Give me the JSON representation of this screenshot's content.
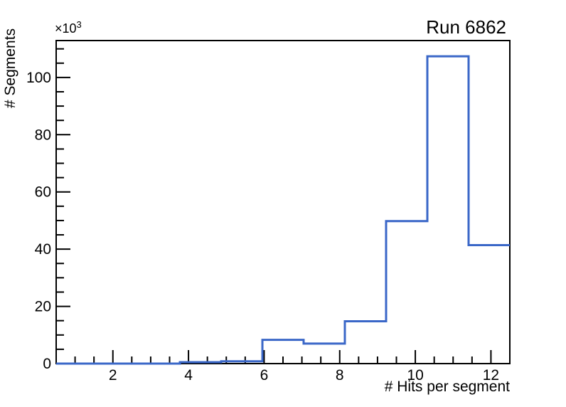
{
  "header": {
    "title": "Run 6862"
  },
  "axes": {
    "x_label": "# Hits per segment",
    "y_label": "# Segments",
    "y_scale_base": "×10",
    "y_scale_exponent": "3"
  },
  "chart_data": {
    "type": "bar",
    "subtype": "step-histogram",
    "title": "Run 6862",
    "xlabel": "# Hits per segment",
    "ylabel": "# Segments",
    "y_scale_label": "×10^3",
    "y_unit_multiplier": 1000,
    "xlim": [
      0.5,
      12.5
    ],
    "ylim": [
      0,
      112900
    ],
    "grid": false,
    "legend": false,
    "bin_edges": [
      0.5,
      1.591,
      2.682,
      3.773,
      4.864,
      5.955,
      7.045,
      8.136,
      9.227,
      10.318,
      11.409,
      12.5
    ],
    "counts": [
      0,
      0,
      0,
      500,
      800,
      8300,
      7000,
      14800,
      49800,
      107400,
      41400
    ],
    "x_major_ticks": [
      2,
      4,
      6,
      8,
      10,
      12
    ],
    "x_major_tick_labels": [
      "2",
      "4",
      "6",
      "8",
      "10",
      "12"
    ],
    "x_minor_tick_step": 0.5,
    "y_major_ticks": [
      0,
      20000,
      40000,
      60000,
      80000,
      100000
    ],
    "y_major_tick_labels": [
      "0",
      "20",
      "40",
      "60",
      "80",
      "100"
    ],
    "y_minor_tick_step": 5000,
    "line_color": "#3a67c8",
    "frame_color": "#000000",
    "background_color": "#ffffff"
  }
}
